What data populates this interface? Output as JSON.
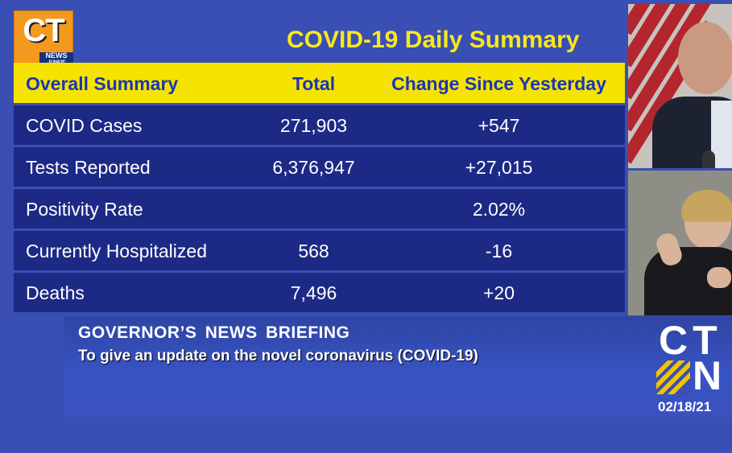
{
  "logo": {
    "main": "CT",
    "line1": "NEWS",
    "line2": "JUNKIE"
  },
  "title": "COVID-19 Daily Summary",
  "table": {
    "headers": [
      "Overall Summary",
      "Total",
      "Change Since Yesterday"
    ],
    "rows": [
      {
        "label": "COVID Cases",
        "total": "271,903",
        "change": "+547"
      },
      {
        "label": "Tests Reported",
        "total": "6,376,947",
        "change": "+27,015"
      },
      {
        "label": "Positivity Rate",
        "total": "",
        "change": "2.02%"
      },
      {
        "label": "Currently Hospitalized",
        "total": "568",
        "change": "-16"
      },
      {
        "label": "Deaths",
        "total": "7,496",
        "change": "+20"
      }
    ]
  },
  "lower_third": {
    "line1": "GOVERNOR’S NEWS BRIEFING",
    "line2": "To give an update on the novel coronavirus (COVID-19)"
  },
  "network": {
    "top": "CT",
    "bottom": "N",
    "date": "02/18/21"
  },
  "colors": {
    "background": "#3a4fb3",
    "header": "#f6e400",
    "row": "#1c2a86",
    "title": "#f8e81c",
    "logo": "#f39a1e"
  }
}
